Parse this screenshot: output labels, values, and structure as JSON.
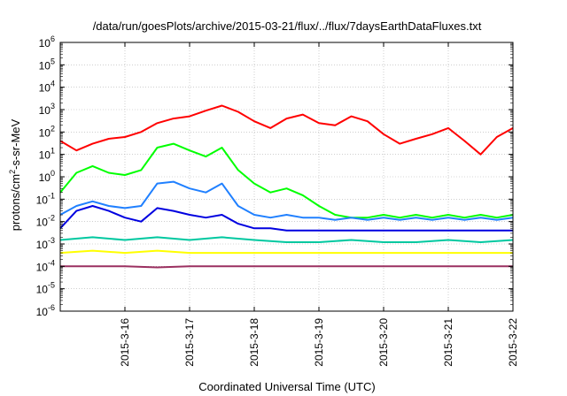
{
  "chart_data": {
    "type": "line",
    "title": "/data/run/goesPlots/archive/2015-03-21/flux/../flux/7daysEarthDataFluxes.txt",
    "xlabel": "Coordinated Universal Time (UTC)",
    "ylabel_parts": {
      "base": "protons/cm",
      "sup": "2",
      "rest": "-s-sr-MeV"
    },
    "yscale": "log",
    "ylim_exp": [
      -6,
      6
    ],
    "ytick_exps": [
      -6,
      -5,
      -4,
      -3,
      -2,
      -1,
      0,
      1,
      2,
      3,
      4,
      5,
      6
    ],
    "ytick_base": "10",
    "xlim": [
      "2015-03-15 00:00",
      "2015-03-22 00:00"
    ],
    "xticks": [
      "2015-3-16",
      "2015-3-17",
      "2015-3-18",
      "2015-3-19",
      "2015-3-20",
      "2015-3-21",
      "2015-3-22"
    ],
    "grid": true,
    "legend": "none",
    "series": [
      {
        "color": "#ff0000",
        "x": [
          "2015-03-15 00:00",
          "2015-03-15 06:00",
          "2015-03-15 12:00",
          "2015-03-15 18:00",
          "2015-03-16 00:00",
          "2015-03-16 06:00",
          "2015-03-16 12:00",
          "2015-03-16 18:00",
          "2015-03-17 00:00",
          "2015-03-17 06:00",
          "2015-03-17 12:00",
          "2015-03-17 18:00",
          "2015-03-18 00:00",
          "2015-03-18 06:00",
          "2015-03-18 12:00",
          "2015-03-18 18:00",
          "2015-03-19 00:00",
          "2015-03-19 06:00",
          "2015-03-19 12:00",
          "2015-03-19 18:00",
          "2015-03-20 00:00",
          "2015-03-20 06:00",
          "2015-03-20 12:00",
          "2015-03-20 18:00",
          "2015-03-21 00:00",
          "2015-03-21 06:00",
          "2015-03-21 12:00",
          "2015-03-21 18:00",
          "2015-03-22 00:00"
        ],
        "y": [
          40,
          15,
          30,
          50,
          60,
          100,
          250,
          400,
          500,
          900,
          1500,
          800,
          300,
          150,
          400,
          600,
          250,
          200,
          500,
          300,
          80,
          30,
          50,
          80,
          150,
          40,
          10,
          60,
          150
        ]
      },
      {
        "color": "#00ff00",
        "x": [
          "2015-03-15 00:00",
          "2015-03-15 06:00",
          "2015-03-15 12:00",
          "2015-03-15 18:00",
          "2015-03-16 00:00",
          "2015-03-16 06:00",
          "2015-03-16 12:00",
          "2015-03-16 18:00",
          "2015-03-17 00:00",
          "2015-03-17 06:00",
          "2015-03-17 12:00",
          "2015-03-17 18:00",
          "2015-03-18 00:00",
          "2015-03-18 06:00",
          "2015-03-18 12:00",
          "2015-03-18 18:00",
          "2015-03-19 00:00",
          "2015-03-19 06:00",
          "2015-03-19 12:00",
          "2015-03-19 18:00",
          "2015-03-20 00:00",
          "2015-03-20 06:00",
          "2015-03-20 12:00",
          "2015-03-20 18:00",
          "2015-03-21 00:00",
          "2015-03-21 06:00",
          "2015-03-21 12:00",
          "2015-03-21 18:00",
          "2015-03-22 00:00"
        ],
        "y": [
          0.2,
          1.5,
          3,
          1.5,
          1.2,
          2,
          20,
          30,
          15,
          8,
          20,
          2,
          0.5,
          0.2,
          0.3,
          0.15,
          0.05,
          0.02,
          0.015,
          0.015,
          0.02,
          0.015,
          0.02,
          0.015,
          0.02,
          0.015,
          0.02,
          0.015,
          0.02
        ]
      },
      {
        "color": "#2080ff",
        "x": [
          "2015-03-15 00:00",
          "2015-03-15 06:00",
          "2015-03-15 12:00",
          "2015-03-15 18:00",
          "2015-03-16 00:00",
          "2015-03-16 06:00",
          "2015-03-16 12:00",
          "2015-03-16 18:00",
          "2015-03-17 00:00",
          "2015-03-17 06:00",
          "2015-03-17 12:00",
          "2015-03-17 18:00",
          "2015-03-18 00:00",
          "2015-03-18 06:00",
          "2015-03-18 12:00",
          "2015-03-18 18:00",
          "2015-03-19 00:00",
          "2015-03-19 06:00",
          "2015-03-19 12:00",
          "2015-03-19 18:00",
          "2015-03-20 00:00",
          "2015-03-20 06:00",
          "2015-03-20 12:00",
          "2015-03-20 18:00",
          "2015-03-21 00:00",
          "2015-03-21 06:00",
          "2015-03-21 12:00",
          "2015-03-21 18:00",
          "2015-03-22 00:00"
        ],
        "y": [
          0.02,
          0.05,
          0.08,
          0.05,
          0.04,
          0.05,
          0.5,
          0.6,
          0.3,
          0.2,
          0.5,
          0.05,
          0.02,
          0.015,
          0.02,
          0.015,
          0.015,
          0.012,
          0.015,
          0.012,
          0.015,
          0.012,
          0.015,
          0.012,
          0.015,
          0.012,
          0.015,
          0.012,
          0.015
        ]
      },
      {
        "color": "#0000e0",
        "x": [
          "2015-03-15 00:00",
          "2015-03-15 06:00",
          "2015-03-15 12:00",
          "2015-03-15 18:00",
          "2015-03-16 00:00",
          "2015-03-16 06:00",
          "2015-03-16 12:00",
          "2015-03-16 18:00",
          "2015-03-17 00:00",
          "2015-03-17 06:00",
          "2015-03-17 12:00",
          "2015-03-17 18:00",
          "2015-03-18 00:00",
          "2015-03-18 06:00",
          "2015-03-18 12:00",
          "2015-03-18 18:00",
          "2015-03-19 00:00",
          "2015-03-19 06:00",
          "2015-03-19 12:00",
          "2015-03-19 18:00",
          "2015-03-20 00:00",
          "2015-03-20 06:00",
          "2015-03-20 12:00",
          "2015-03-20 18:00",
          "2015-03-21 00:00",
          "2015-03-21 06:00",
          "2015-03-21 12:00",
          "2015-03-21 18:00",
          "2015-03-22 00:00"
        ],
        "y": [
          0.005,
          0.03,
          0.05,
          0.03,
          0.015,
          0.01,
          0.04,
          0.03,
          0.02,
          0.015,
          0.02,
          0.008,
          0.005,
          0.005,
          0.004,
          0.004,
          0.004,
          0.004,
          0.004,
          0.004,
          0.004,
          0.004,
          0.004,
          0.004,
          0.004,
          0.004,
          0.004,
          0.004,
          0.004
        ]
      },
      {
        "color": "#00c8a0",
        "x": [
          "2015-03-15 00:00",
          "2015-03-15 12:00",
          "2015-03-16 00:00",
          "2015-03-16 12:00",
          "2015-03-17 00:00",
          "2015-03-17 12:00",
          "2015-03-18 00:00",
          "2015-03-18 12:00",
          "2015-03-19 00:00",
          "2015-03-19 12:00",
          "2015-03-20 00:00",
          "2015-03-20 12:00",
          "2015-03-21 00:00",
          "2015-03-21 12:00",
          "2015-03-22 00:00"
        ],
        "y": [
          0.0015,
          0.002,
          0.0015,
          0.002,
          0.0015,
          0.002,
          0.0015,
          0.0012,
          0.0012,
          0.0015,
          0.0012,
          0.0012,
          0.0015,
          0.0012,
          0.0015
        ]
      },
      {
        "color": "#ffff00",
        "x": [
          "2015-03-15 00:00",
          "2015-03-15 12:00",
          "2015-03-16 00:00",
          "2015-03-16 12:00",
          "2015-03-17 00:00",
          "2015-03-17 12:00",
          "2015-03-18 00:00",
          "2015-03-18 12:00",
          "2015-03-19 00:00",
          "2015-03-19 12:00",
          "2015-03-20 00:00",
          "2015-03-20 12:00",
          "2015-03-21 00:00",
          "2015-03-21 12:00",
          "2015-03-22 00:00"
        ],
        "y": [
          0.0004,
          0.0005,
          0.0004,
          0.0005,
          0.0004,
          0.0004,
          0.0004,
          0.0004,
          0.0004,
          0.0004,
          0.0004,
          0.0004,
          0.0004,
          0.0004,
          0.0004
        ]
      },
      {
        "color": "#9b3060",
        "x": [
          "2015-03-15 00:00",
          "2015-03-15 12:00",
          "2015-03-16 00:00",
          "2015-03-16 12:00",
          "2015-03-17 00:00",
          "2015-03-17 12:00",
          "2015-03-18 00:00",
          "2015-03-18 12:00",
          "2015-03-19 00:00",
          "2015-03-19 12:00",
          "2015-03-20 00:00",
          "2015-03-20 12:00",
          "2015-03-21 00:00",
          "2015-03-21 12:00",
          "2015-03-22 00:00"
        ],
        "y": [
          0.0001,
          0.0001,
          0.0001,
          9e-05,
          0.0001,
          0.0001,
          0.0001,
          0.0001,
          0.0001,
          0.0001,
          0.0001,
          0.0001,
          0.0001,
          0.0001,
          0.0001
        ]
      }
    ]
  }
}
